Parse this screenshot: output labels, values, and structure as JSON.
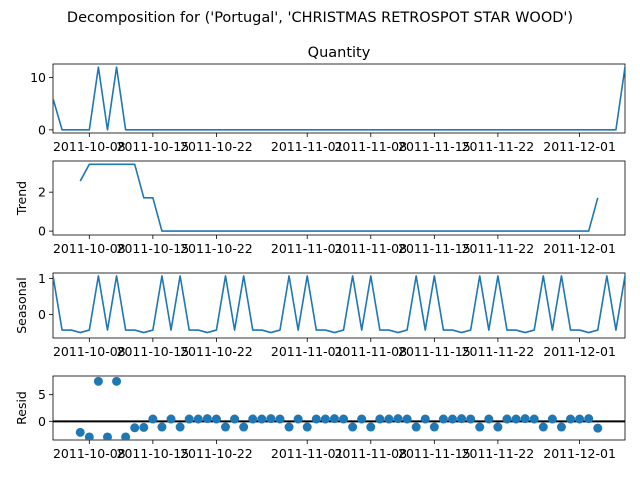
{
  "suptitle": "Decomposition for ('Portugal', 'CHRISTMAS RETROSPOT STAR WOOD')",
  "x_tick_labels": [
    "2011-10-08",
    "2011-10-15",
    "2011-10-22",
    "2011-11-01",
    "2011-11-08",
    "2011-11-15",
    "2011-11-22",
    "2011-12-01"
  ],
  "colors": {
    "line": "#1f77b4",
    "marker": "#1f77b4",
    "zero_line": "#000000"
  },
  "chart_data": [
    {
      "type": "line",
      "title": "Quantity",
      "ylabel": "",
      "x_range": [
        "2011-10-04",
        "2011-12-06"
      ],
      "ylim": [
        -0.6,
        12.6
      ],
      "y_ticks": [
        0,
        10
      ],
      "x": [
        "2011-10-04",
        "2011-10-05",
        "2011-10-06",
        "2011-10-07",
        "2011-10-08",
        "2011-10-09",
        "2011-10-10",
        "2011-10-11",
        "2011-10-12",
        "2011-10-13",
        "2011-10-14",
        "2011-10-15",
        "2011-10-16",
        "2011-10-17",
        "2011-10-18",
        "2011-10-19",
        "2011-10-20",
        "2011-10-21",
        "2011-10-22",
        "2011-10-23",
        "2011-10-24",
        "2011-10-25",
        "2011-10-26",
        "2011-10-27",
        "2011-10-28",
        "2011-10-29",
        "2011-10-30",
        "2011-10-31",
        "2011-11-01",
        "2011-11-02",
        "2011-11-03",
        "2011-11-04",
        "2011-11-05",
        "2011-11-06",
        "2011-11-07",
        "2011-11-08",
        "2011-11-09",
        "2011-11-10",
        "2011-11-11",
        "2011-11-12",
        "2011-11-13",
        "2011-11-14",
        "2011-11-15",
        "2011-11-16",
        "2011-11-17",
        "2011-11-18",
        "2011-11-19",
        "2011-11-20",
        "2011-11-21",
        "2011-11-22",
        "2011-11-23",
        "2011-11-24",
        "2011-11-25",
        "2011-11-26",
        "2011-11-27",
        "2011-11-28",
        "2011-11-29",
        "2011-11-30",
        "2011-12-01",
        "2011-12-02",
        "2011-12-03",
        "2011-12-04",
        "2011-12-05",
        "2011-12-06"
      ],
      "values": [
        6,
        0,
        0,
        0,
        0,
        12,
        0,
        12,
        0,
        0,
        0,
        0,
        0,
        0,
        0,
        0,
        0,
        0,
        0,
        0,
        0,
        0,
        0,
        0,
        0,
        0,
        0,
        0,
        0,
        0,
        0,
        0,
        0,
        0,
        0,
        0,
        0,
        0,
        0,
        0,
        0,
        0,
        0,
        0,
        0,
        0,
        0,
        0,
        0,
        0,
        0,
        0,
        0,
        0,
        0,
        0,
        0,
        0,
        0,
        0,
        0,
        0,
        0,
        12
      ]
    },
    {
      "type": "line",
      "ylabel": "Trend",
      "x_range": [
        "2011-10-04",
        "2011-12-06"
      ],
      "ylim": [
        -0.2,
        3.6
      ],
      "y_ticks": [
        0,
        2
      ],
      "x": [
        "2011-10-07",
        "2011-10-08",
        "2011-10-09",
        "2011-10-10",
        "2011-10-11",
        "2011-10-12",
        "2011-10-13",
        "2011-10-14",
        "2011-10-15",
        "2011-10-16",
        "2011-10-17",
        "2011-10-18",
        "2011-10-19",
        "2011-10-20",
        "2011-10-21",
        "2011-10-22",
        "2011-10-23",
        "2011-10-24",
        "2011-10-25",
        "2011-10-26",
        "2011-10-27",
        "2011-10-28",
        "2011-10-29",
        "2011-10-30",
        "2011-10-31",
        "2011-11-01",
        "2011-11-02",
        "2011-11-03",
        "2011-11-04",
        "2011-11-05",
        "2011-11-06",
        "2011-11-07",
        "2011-11-08",
        "2011-11-09",
        "2011-11-10",
        "2011-11-11",
        "2011-11-12",
        "2011-11-13",
        "2011-11-14",
        "2011-11-15",
        "2011-11-16",
        "2011-11-17",
        "2011-11-18",
        "2011-11-19",
        "2011-11-20",
        "2011-11-21",
        "2011-11-22",
        "2011-11-23",
        "2011-11-24",
        "2011-11-25",
        "2011-11-26",
        "2011-11-27",
        "2011-11-28",
        "2011-11-29",
        "2011-11-30",
        "2011-12-01",
        "2011-12-02",
        "2011-12-03"
      ],
      "values": [
        2.57,
        3.43,
        3.43,
        3.43,
        3.43,
        3.43,
        3.43,
        1.71,
        1.71,
        0,
        0,
        0,
        0,
        0,
        0,
        0,
        0,
        0,
        0,
        0,
        0,
        0,
        0,
        0,
        0,
        0,
        0,
        0,
        0,
        0,
        0,
        0,
        0,
        0,
        0,
        0,
        0,
        0,
        0,
        0,
        0,
        0,
        0,
        0,
        0,
        0,
        0,
        0,
        0,
        0,
        0,
        0,
        0,
        0,
        0,
        0,
        0,
        1.71
      ]
    },
    {
      "type": "line",
      "ylabel": "Seasonal",
      "x_range": [
        "2011-10-04",
        "2011-12-06"
      ],
      "ylim": [
        -0.65,
        1.15
      ],
      "y_ticks": [
        0,
        1
      ],
      "x": [
        "2011-10-04",
        "2011-10-05",
        "2011-10-06",
        "2011-10-07",
        "2011-10-08",
        "2011-10-09",
        "2011-10-10",
        "2011-10-11",
        "2011-10-12",
        "2011-10-13",
        "2011-10-14",
        "2011-10-15",
        "2011-10-16",
        "2011-10-17",
        "2011-10-18",
        "2011-10-19",
        "2011-10-20",
        "2011-10-21",
        "2011-10-22",
        "2011-10-23",
        "2011-10-24",
        "2011-10-25",
        "2011-10-26",
        "2011-10-27",
        "2011-10-28",
        "2011-10-29",
        "2011-10-30",
        "2011-10-31",
        "2011-11-01",
        "2011-11-02",
        "2011-11-03",
        "2011-11-04",
        "2011-11-05",
        "2011-11-06",
        "2011-11-07",
        "2011-11-08",
        "2011-11-09",
        "2011-11-10",
        "2011-11-11",
        "2011-11-12",
        "2011-11-13",
        "2011-11-14",
        "2011-11-15",
        "2011-11-16",
        "2011-11-17",
        "2011-11-18",
        "2011-11-19",
        "2011-11-20",
        "2011-11-21",
        "2011-11-22",
        "2011-11-23",
        "2011-11-24",
        "2011-11-25",
        "2011-11-26",
        "2011-11-27",
        "2011-11-28",
        "2011-11-29",
        "2011-11-30",
        "2011-12-01",
        "2011-12-02",
        "2011-12-03",
        "2011-12-04",
        "2011-12-05",
        "2011-12-06"
      ],
      "values": [
        1.07,
        -0.43,
        -0.43,
        -0.5,
        -0.43,
        1.07,
        -0.43,
        1.07,
        -0.43,
        -0.43,
        -0.5,
        -0.43,
        1.07,
        -0.43,
        1.07,
        -0.43,
        -0.43,
        -0.5,
        -0.43,
        1.07,
        -0.43,
        1.07,
        -0.43,
        -0.43,
        -0.5,
        -0.43,
        1.07,
        -0.43,
        1.07,
        -0.43,
        -0.43,
        -0.5,
        -0.43,
        1.07,
        -0.43,
        1.07,
        -0.43,
        -0.43,
        -0.5,
        -0.43,
        1.07,
        -0.43,
        1.07,
        -0.43,
        -0.43,
        -0.5,
        -0.43,
        1.07,
        -0.43,
        1.07,
        -0.43,
        -0.43,
        -0.5,
        -0.43,
        1.07,
        -0.43,
        1.07,
        -0.43,
        -0.43,
        -0.5,
        -0.43,
        1.07,
        -0.43,
        1.07
      ]
    },
    {
      "type": "scatter",
      "ylabel": "Resid",
      "x_range": [
        "2011-10-04",
        "2011-12-06"
      ],
      "ylim": [
        -3.5,
        8.5
      ],
      "y_ticks": [
        0,
        5
      ],
      "zero_line": true,
      "x": [
        "2011-10-07",
        "2011-10-08",
        "2011-10-09",
        "2011-10-10",
        "2011-10-11",
        "2011-10-12",
        "2011-10-13",
        "2011-10-14",
        "2011-10-15",
        "2011-10-16",
        "2011-10-17",
        "2011-10-18",
        "2011-10-19",
        "2011-10-20",
        "2011-10-21",
        "2011-10-22",
        "2011-10-23",
        "2011-10-24",
        "2011-10-25",
        "2011-10-26",
        "2011-10-27",
        "2011-10-28",
        "2011-10-29",
        "2011-10-30",
        "2011-10-31",
        "2011-11-01",
        "2011-11-02",
        "2011-11-03",
        "2011-11-04",
        "2011-11-05",
        "2011-11-06",
        "2011-11-07",
        "2011-11-08",
        "2011-11-09",
        "2011-11-10",
        "2011-11-11",
        "2011-11-12",
        "2011-11-13",
        "2011-11-14",
        "2011-11-15",
        "2011-11-16",
        "2011-11-17",
        "2011-11-18",
        "2011-11-19",
        "2011-11-20",
        "2011-11-21",
        "2011-11-22",
        "2011-11-23",
        "2011-11-24",
        "2011-11-25",
        "2011-11-26",
        "2011-11-27",
        "2011-11-28",
        "2011-11-29",
        "2011-11-30",
        "2011-12-01",
        "2011-12-02",
        "2011-12-03"
      ],
      "values": [
        -2.07,
        -2.93,
        7.5,
        -2.93,
        7.5,
        -2.93,
        -1.21,
        -1.14,
        0.43,
        -1.07,
        0.43,
        -1.07,
        0.43,
        0.43,
        0.5,
        0.43,
        -1.07,
        0.43,
        -1.07,
        0.43,
        0.43,
        0.5,
        0.43,
        -1.07,
        0.43,
        -1.07,
        0.43,
        0.43,
        0.5,
        0.43,
        -1.07,
        0.43,
        -1.07,
        0.43,
        0.43,
        0.5,
        0.43,
        -1.07,
        0.43,
        -1.07,
        0.43,
        0.43,
        0.5,
        0.43,
        -1.07,
        0.43,
        -1.07,
        0.43,
        0.43,
        0.5,
        0.43,
        -1.07,
        0.43,
        -1.07,
        0.43,
        0.43,
        0.5,
        -1.28
      ]
    }
  ]
}
